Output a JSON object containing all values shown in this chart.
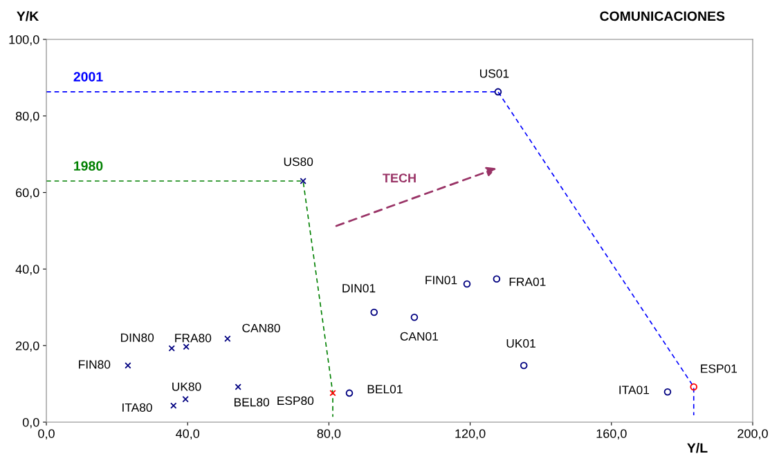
{
  "chart_data": {
    "type": "scatter",
    "title": "COMUNICACIONES",
    "xlabel": "Y/L",
    "ylabel": "Y/K",
    "xlim": [
      0,
      200
    ],
    "ylim": [
      0,
      100
    ],
    "xticks": [
      {
        "value": 0,
        "label": "0,0"
      },
      {
        "value": 40,
        "label": "40,0"
      },
      {
        "value": 80,
        "label": "80,0"
      },
      {
        "value": 120,
        "label": "120,0"
      },
      {
        "value": 160,
        "label": "160,0"
      },
      {
        "value": 200,
        "label": "200,0"
      }
    ],
    "yticks": [
      {
        "value": 0,
        "label": "0,0"
      },
      {
        "value": 20,
        "label": "20,0"
      },
      {
        "value": 40,
        "label": "40,0"
      },
      {
        "value": 60,
        "label": "60,0"
      },
      {
        "value": 80,
        "label": "80,0"
      },
      {
        "value": 100,
        "label": "100,0"
      }
    ],
    "grid": false,
    "series": [
      {
        "name": "2001",
        "type": "line",
        "line_style": "dashed",
        "marker": "none",
        "color": "#0000ff",
        "x": [
          0,
          127.9,
          183.3,
          183.3
        ],
        "values": [
          86.3,
          86.3,
          9.2,
          1.8
        ]
      },
      {
        "name": "1980",
        "type": "line",
        "line_style": "dashed",
        "marker": "none",
        "color": "#008000",
        "x": [
          0,
          72.7,
          81.1,
          81.1
        ],
        "values": [
          63.0,
          63.0,
          7.6,
          1.4
        ]
      },
      {
        "marker": "cross",
        "x": [
          23.1,
          35.5,
          39.6,
          51.3,
          54.3,
          39.4,
          36.0,
          72.7,
          81.1
        ],
        "values": [
          14.8,
          19.3,
          19.7,
          21.8,
          9.2,
          6.0,
          4.3,
          63.0,
          7.6
        ],
        "colors": [
          "#000080",
          "#000080",
          "#000080",
          "#000080",
          "#000080",
          "#000080",
          "#000080",
          "#000080",
          "#ff0000"
        ]
      },
      {
        "marker": "circle",
        "x": [
          127.9,
          127.5,
          119.1,
          92.8,
          104.2,
          135.2,
          85.8,
          175.9,
          183.3
        ],
        "values": [
          86.3,
          37.4,
          36.1,
          28.7,
          27.4,
          14.8,
          7.6,
          7.9,
          9.2
        ],
        "colors": [
          "#000080",
          "#000080",
          "#000080",
          "#000080",
          "#000080",
          "#000080",
          "#000080",
          "#000080",
          "#ff0000"
        ]
      }
    ],
    "annotations": [
      {
        "text": "FIN80",
        "x": 23.1,
        "y": 14.8
      },
      {
        "text": "DIN80",
        "x": 35.5,
        "y": 19.3
      },
      {
        "text": "FRA80",
        "x": 39.6,
        "y": 19.7
      },
      {
        "text": "CAN80",
        "x": 51.3,
        "y": 21.8
      },
      {
        "text": "BEL80",
        "x": 54.3,
        "y": 9.2
      },
      {
        "text": "UK80",
        "x": 39.4,
        "y": 6.0
      },
      {
        "text": "ITA80",
        "x": 36.0,
        "y": 4.3
      },
      {
        "text": "US80",
        "x": 72.7,
        "y": 63.0
      },
      {
        "text": "ESP80",
        "x": 81.1,
        "y": 7.6
      },
      {
        "text": "US01",
        "x": 127.9,
        "y": 86.3
      },
      {
        "text": "FRA01",
        "x": 127.5,
        "y": 37.4
      },
      {
        "text": "FIN01",
        "x": 119.1,
        "y": 36.1
      },
      {
        "text": "DIN01",
        "x": 92.8,
        "y": 28.7
      },
      {
        "text": "CAN01",
        "x": 104.2,
        "y": 27.4
      },
      {
        "text": "UK01",
        "x": 135.2,
        "y": 14.8
      },
      {
        "text": "BEL01",
        "x": 85.8,
        "y": 7.6
      },
      {
        "text": "ITA01",
        "x": 175.9,
        "y": 7.9
      },
      {
        "text": "ESP01",
        "x": 183.3,
        "y": 9.2
      },
      "TECH"
    ]
  }
}
